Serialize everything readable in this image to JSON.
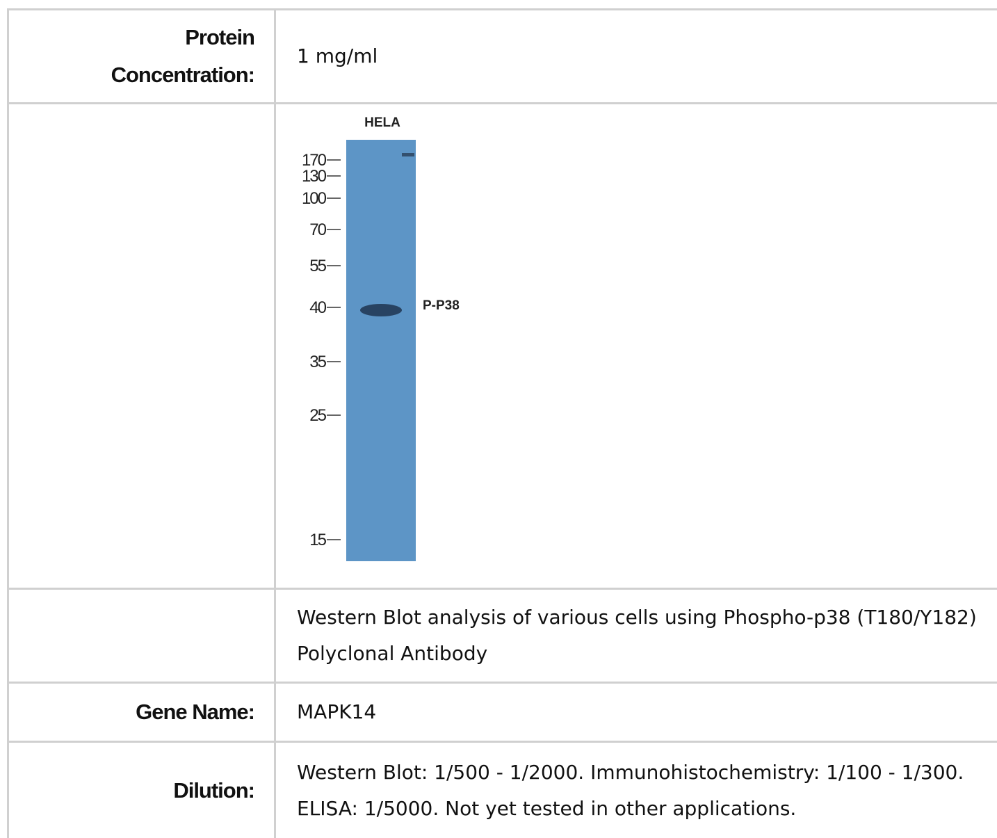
{
  "rows": [
    {
      "label": "Protein Concentration:",
      "value": "1 mg/ml"
    },
    {
      "blot": {
        "lane": "HELA",
        "band": "P-P38",
        "markers": [
          "170",
          "130",
          "100",
          "70",
          "55",
          "40",
          "35",
          "25",
          "15"
        ]
      }
    },
    {
      "value": "Western Blot analysis of various cells using Phospho-p38 (T180/Y182) Polyclonal Antibody"
    },
    {
      "label": "Gene Name:",
      "value": "MAPK14"
    },
    {
      "label": "Dilution:",
      "value": "Western Blot: 1/500 - 1/2000. Immunohistochemistry: 1/100 - 1/300. ELISA: 1/5000. Not yet tested in other applications."
    }
  ]
}
